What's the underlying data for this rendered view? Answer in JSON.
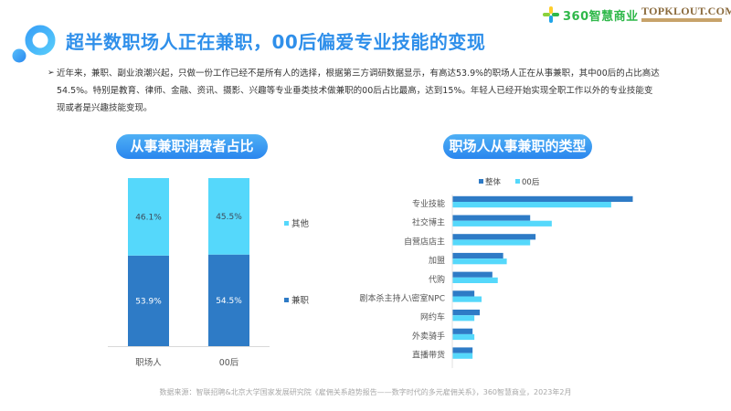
{
  "header": {
    "title": "超半数职场人正在兼职，00后偏爱专业技能的变现",
    "brand_logo_text": "360智慧商业",
    "partner_logo_text": "TOPKLOUT.COM"
  },
  "intro": {
    "bullet": "➢",
    "text": "近年来，兼职、副业浪潮兴起，只做一份工作已经不是所有人的选择，根据第三方调研数据显示，有高达53.9%的职场人正在从事兼职，其中00后的占比高达54.5%。特别是教育、律师、金融、资讯、摄影、兴趣等专业垂类技术做兼职的00后占比最高，达到15%。年轻人已经开始实现全职工作以外的专业技能变现或者是兴趣技能变现。"
  },
  "left_panel": {
    "title": "从事兼职消费者占比"
  },
  "right_panel": {
    "title": "职场人从事兼职的类型"
  },
  "source": "数据来源：智联招聘&北京大学国家发展研究院《雇佣关系趋势报告——数字时代的多元雇佣关系》，360智慧商业，2023年2月",
  "colors": {
    "dark": "#2e7bc6",
    "light": "#55d8fb",
    "accent": "#2f8fea"
  },
  "chart_data": [
    {
      "type": "bar",
      "stacked": true,
      "title": "从事兼职消费者占比",
      "categories": [
        "职场人",
        "00后"
      ],
      "series": [
        {
          "name": "兼职",
          "values": [
            53.9,
            54.5
          ],
          "labels": [
            "53.9%",
            "54.5%"
          ],
          "color": "#2e7bc6"
        },
        {
          "name": "其他",
          "values": [
            46.1,
            45.5
          ],
          "labels": [
            "46.1%",
            "45.5%"
          ],
          "color": "#55d8fb"
        }
      ],
      "legend": [
        "其他",
        "兼职"
      ],
      "legend_position": "right",
      "ylim": [
        0,
        100
      ],
      "grid": false
    },
    {
      "type": "bar",
      "orientation": "horizontal",
      "title": "职场人从事兼职的类型",
      "categories": [
        "专业技能",
        "社交博主",
        "自营店店主",
        "加盟",
        "代购",
        "剧本杀主持人\\密室NPC",
        "网约车",
        "外卖骑手",
        "直播带货"
      ],
      "series": [
        {
          "name": "整体",
          "values": [
            100,
            43,
            46,
            28,
            22,
            12,
            15,
            11,
            11
          ],
          "color": "#2e7bc6"
        },
        {
          "name": "00后",
          "values": [
            88,
            55,
            43,
            30,
            25,
            16,
            12,
            12,
            11
          ],
          "color": "#55d8fb"
        }
      ],
      "legend_position": "top",
      "xlim": [
        0,
        100
      ],
      "grid": false,
      "note": "relative bar lengths estimated from pixels; no value axis shown"
    }
  ]
}
